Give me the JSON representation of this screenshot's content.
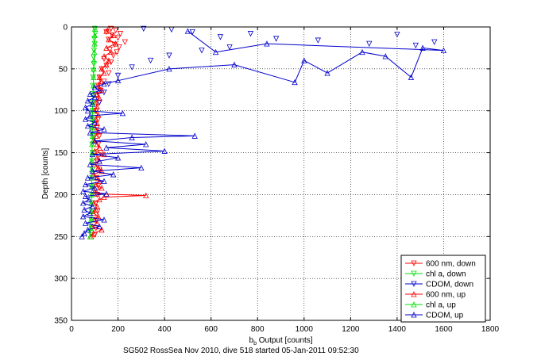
{
  "chart_data": {
    "type": "line",
    "title": "",
    "caption": "SG502 RossSea Nov 2010, dive 518 started 05-Jan-2011 09:52:30",
    "xlabel_main": "b",
    "xlabel_sub": "b",
    "xlabel_rest": " Output [counts]",
    "ylabel": "Depth [counts]",
    "xlim": [
      0,
      1800
    ],
    "ylim": [
      0,
      350
    ],
    "y_reversed": true,
    "grid": true,
    "legend_position": "bottom-right",
    "xticks": [
      "0",
      "200",
      "400",
      "600",
      "800",
      "1000",
      "1200",
      "1400",
      "1600",
      "1800"
    ],
    "yticks": [
      "0",
      "50",
      "100",
      "150",
      "200",
      "250",
      "300",
      "350"
    ],
    "series": [
      {
        "name": "600 nm, down",
        "color": "#ff0000",
        "marker": "triangle-down",
        "linestyle": "none",
        "points": [
          [
            170,
            2
          ],
          [
            190,
            4
          ],
          [
            150,
            6
          ],
          [
            210,
            8
          ],
          [
            175,
            10
          ],
          [
            200,
            13
          ],
          [
            160,
            15
          ],
          [
            230,
            18
          ],
          [
            185,
            21
          ],
          [
            205,
            24
          ],
          [
            165,
            27
          ],
          [
            195,
            30
          ],
          [
            180,
            34
          ],
          [
            140,
            38
          ],
          [
            170,
            42
          ],
          [
            150,
            46
          ],
          [
            130,
            50
          ],
          [
            160,
            55
          ],
          [
            120,
            60
          ],
          [
            140,
            65
          ],
          [
            115,
            70
          ],
          [
            125,
            76
          ],
          [
            110,
            82
          ],
          [
            120,
            90
          ],
          [
            105,
            100
          ],
          [
            115,
            110
          ],
          [
            110,
            120
          ],
          [
            120,
            130
          ],
          [
            115,
            140
          ],
          [
            125,
            150
          ],
          [
            110,
            160
          ],
          [
            120,
            170
          ],
          [
            108,
            180
          ],
          [
            115,
            190
          ],
          [
            110,
            200
          ],
          [
            105,
            210
          ],
          [
            112,
            220
          ],
          [
            108,
            230
          ],
          [
            105,
            240
          ],
          [
            100,
            248
          ]
        ]
      },
      {
        "name": "chl a, down",
        "color": "#00dd00",
        "marker": "triangle-down",
        "linestyle": "none",
        "points": [
          [
            100,
            2
          ],
          [
            102,
            8
          ],
          [
            98,
            14
          ],
          [
            100,
            20
          ],
          [
            97,
            28
          ],
          [
            95,
            36
          ],
          [
            96,
            44
          ],
          [
            94,
            52
          ],
          [
            93,
            60
          ],
          [
            92,
            70
          ],
          [
            90,
            80
          ],
          [
            91,
            90
          ],
          [
            89,
            100
          ],
          [
            90,
            110
          ],
          [
            88,
            120
          ],
          [
            90,
            130
          ],
          [
            89,
            140
          ],
          [
            90,
            150
          ],
          [
            88,
            160
          ],
          [
            90,
            170
          ],
          [
            88,
            180
          ],
          [
            87,
            190
          ],
          [
            88,
            200
          ],
          [
            86,
            210
          ],
          [
            87,
            220
          ],
          [
            85,
            230
          ],
          [
            86,
            240
          ],
          [
            84,
            248
          ]
        ]
      },
      {
        "name": "CDOM, down",
        "color": "#0000cc",
        "marker": "triangle-down",
        "linestyle": "none",
        "points": [
          [
            310,
            2
          ],
          [
            430,
            3
          ],
          [
            520,
            6
          ],
          [
            640,
            12
          ],
          [
            770,
            8
          ],
          [
            880,
            14
          ],
          [
            1060,
            16
          ],
          [
            1280,
            20
          ],
          [
            1400,
            9
          ],
          [
            1480,
            22
          ],
          [
            1560,
            18
          ],
          [
            680,
            24
          ],
          [
            560,
            28
          ],
          [
            420,
            34
          ],
          [
            340,
            40
          ],
          [
            260,
            48
          ],
          [
            200,
            58
          ],
          [
            160,
            68
          ],
          [
            140,
            78
          ],
          [
            120,
            90
          ]
        ]
      },
      {
        "name": "600 nm, up",
        "color": "#ff0000",
        "marker": "triangle-up",
        "linestyle": "solid",
        "points": [
          [
            85,
            250
          ],
          [
            95,
            246
          ],
          [
            130,
            242
          ],
          [
            90,
            238
          ],
          [
            110,
            234
          ],
          [
            100,
            230
          ],
          [
            115,
            226
          ],
          [
            95,
            222
          ],
          [
            105,
            218
          ],
          [
            110,
            214
          ],
          [
            95,
            210
          ],
          [
            120,
            206
          ],
          [
            140,
            203
          ],
          [
            320,
            201
          ],
          [
            110,
            199
          ],
          [
            100,
            196
          ],
          [
            130,
            192
          ],
          [
            105,
            188
          ],
          [
            120,
            184
          ],
          [
            110,
            180
          ],
          [
            95,
            176
          ],
          [
            130,
            172
          ],
          [
            115,
            168
          ],
          [
            100,
            164
          ],
          [
            120,
            160
          ],
          [
            110,
            156
          ],
          [
            140,
            152
          ],
          [
            100,
            148
          ],
          [
            120,
            144
          ],
          [
            110,
            140
          ],
          [
            95,
            135
          ],
          [
            105,
            130
          ],
          [
            115,
            125
          ],
          [
            100,
            120
          ],
          [
            110,
            115
          ],
          [
            105,
            110
          ],
          [
            115,
            105
          ],
          [
            100,
            100
          ],
          [
            110,
            95
          ],
          [
            105,
            90
          ],
          [
            120,
            85
          ],
          [
            110,
            80
          ],
          [
            130,
            75
          ],
          [
            115,
            70
          ],
          [
            125,
            65
          ],
          [
            120,
            60
          ],
          [
            140,
            55
          ],
          [
            130,
            50
          ],
          [
            150,
            45
          ],
          [
            160,
            40
          ],
          [
            140,
            35
          ],
          [
            170,
            30
          ],
          [
            150,
            25
          ],
          [
            190,
            20
          ],
          [
            160,
            15
          ],
          [
            180,
            10
          ],
          [
            150,
            5
          ],
          [
            160,
            2
          ]
        ]
      },
      {
        "name": "chl a, up",
        "color": "#00dd00",
        "marker": "triangle-up",
        "linestyle": "solid",
        "points": [
          [
            80,
            250
          ],
          [
            82,
            240
          ],
          [
            84,
            230
          ],
          [
            86,
            220
          ],
          [
            85,
            210
          ],
          [
            87,
            200
          ],
          [
            88,
            190
          ],
          [
            86,
            180
          ],
          [
            88,
            170
          ],
          [
            87,
            160
          ],
          [
            89,
            150
          ],
          [
            88,
            140
          ],
          [
            90,
            130
          ],
          [
            89,
            120
          ],
          [
            91,
            110
          ],
          [
            90,
            100
          ],
          [
            92,
            90
          ],
          [
            93,
            80
          ],
          [
            94,
            70
          ],
          [
            95,
            60
          ],
          [
            96,
            50
          ],
          [
            97,
            40
          ],
          [
            98,
            30
          ],
          [
            99,
            20
          ],
          [
            100,
            10
          ],
          [
            101,
            2
          ]
        ]
      },
      {
        "name": "CDOM, up",
        "color": "#0000cc",
        "marker": "triangle-up",
        "linestyle": "solid",
        "points": [
          [
            45,
            250
          ],
          [
            55,
            246
          ],
          [
            70,
            242
          ],
          [
            120,
            238
          ],
          [
            60,
            234
          ],
          [
            140,
            230
          ],
          [
            50,
            226
          ],
          [
            80,
            222
          ],
          [
            55,
            218
          ],
          [
            90,
            214
          ],
          [
            50,
            210
          ],
          [
            75,
            206
          ],
          [
            60,
            202
          ],
          [
            150,
            199
          ],
          [
            50,
            196
          ],
          [
            100,
            192
          ],
          [
            60,
            188
          ],
          [
            140,
            184
          ],
          [
            70,
            180
          ],
          [
            180,
            176
          ],
          [
            90,
            172
          ],
          [
            300,
            168
          ],
          [
            80,
            164
          ],
          [
            120,
            160
          ],
          [
            200,
            156
          ],
          [
            90,
            152
          ],
          [
            400,
            148
          ],
          [
            150,
            144
          ],
          [
            320,
            140
          ],
          [
            100,
            136
          ],
          [
            260,
            132
          ],
          [
            530,
            130
          ],
          [
            80,
            126
          ],
          [
            140,
            122
          ],
          [
            70,
            118
          ],
          [
            100,
            114
          ],
          [
            60,
            110
          ],
          [
            80,
            106
          ],
          [
            220,
            103
          ],
          [
            70,
            100
          ],
          [
            60,
            96
          ],
          [
            90,
            92
          ],
          [
            70,
            88
          ],
          [
            100,
            84
          ],
          [
            80,
            80
          ],
          [
            120,
            76
          ],
          [
            100,
            72
          ],
          [
            140,
            68
          ],
          [
            200,
            64
          ],
          [
            420,
            50
          ],
          [
            700,
            45
          ],
          [
            960,
            66
          ],
          [
            1000,
            40
          ],
          [
            1100,
            55
          ],
          [
            1250,
            30
          ],
          [
            1350,
            35
          ],
          [
            1460,
            60
          ],
          [
            1510,
            25
          ],
          [
            1600,
            28
          ],
          [
            840,
            20
          ],
          [
            620,
            30
          ],
          [
            500,
            5
          ]
        ]
      }
    ]
  }
}
